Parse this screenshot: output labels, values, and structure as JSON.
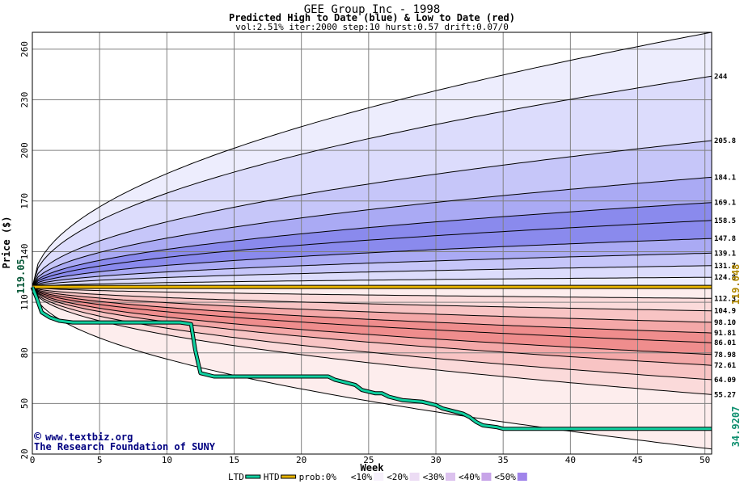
{
  "chart_data": {
    "type": "area",
    "title": "GEE Group Inc - 1998",
    "subtitle": "Predicted High to Date (blue) &  Low to Date (red)",
    "params": "vol:2.51% iter:2000 step:10 hurst:0.57 drift:0.07/0",
    "xlabel": "Week",
    "ylabel": "Price ($)",
    "xlim": [
      0,
      50.5
    ],
    "ylim": [
      20,
      270
    ],
    "x_ticks": [
      0,
      5,
      10,
      15,
      20,
      25,
      30,
      35,
      40,
      45,
      50
    ],
    "y_ticks": [
      20,
      50,
      80,
      110,
      140,
      170,
      200,
      230,
      260
    ],
    "grid": true,
    "start_price": 119.05,
    "start_label": "119.05",
    "current_price": 119.048,
    "current_label": "119.048",
    "ltd_label": "34.9207",
    "colors": {
      "upper_bands": [
        "#ededfd",
        "#dcdcfc",
        "#c6c6f9",
        "#aaaaf4",
        "#8a8aed"
      ],
      "lower_bands": [
        "#fdeded",
        "#fbdada",
        "#f8c4c4",
        "#f4a8a8",
        "#ef8d8d"
      ],
      "ltd": "#10d0a0",
      "htd": "#e8b400",
      "credit": "#000080"
    },
    "high_percentiles": [
      {
        "label": "244",
        "end": 244
      },
      {
        "label": "205.8",
        "end": 205.8
      },
      {
        "label": "184.1",
        "end": 184.1
      },
      {
        "label": "169.1",
        "end": 169.1
      },
      {
        "label": "158.5",
        "end": 158.5
      },
      {
        "label": "147.8",
        "end": 147.8
      },
      {
        "label": "139.1",
        "end": 139.1
      },
      {
        "label": "131.7",
        "end": 131.7
      },
      {
        "label": "124.8",
        "end": 124.8
      }
    ],
    "low_percentiles": [
      {
        "label": "112.3",
        "end": 112.3
      },
      {
        "label": "104.9",
        "end": 104.9
      },
      {
        "label": "98.10",
        "end": 98.1
      },
      {
        "label": "91.81",
        "end": 91.81
      },
      {
        "label": "86.01",
        "end": 86.01
      },
      {
        "label": "78.98",
        "end": 78.98
      },
      {
        "label": "72.61",
        "end": 72.61
      },
      {
        "label": "64.09",
        "end": 64.09
      },
      {
        "label": "55.27",
        "end": 55.27
      }
    ],
    "max_envelope_end": 270,
    "min_envelope_end": 23,
    "ltd_series": {
      "x": [
        0,
        0.3,
        0.7,
        1.3,
        2,
        3,
        5,
        9,
        11,
        11.8,
        12.1,
        12.5,
        13.5,
        14,
        17,
        20,
        22,
        22.5,
        23.5,
        24,
        24.5,
        25.5,
        26,
        26.5,
        27.5,
        29,
        30,
        30.5,
        31,
        32,
        32.5,
        33,
        33.5,
        34.5,
        35,
        50.5
      ],
      "y": [
        119,
        113,
        104,
        101,
        99,
        98,
        98,
        98,
        98,
        97,
        82,
        68,
        66,
        66,
        66,
        66,
        66,
        64,
        62,
        61,
        58,
        56,
        56,
        54,
        52,
        51,
        49,
        47,
        46,
        44,
        42,
        39,
        37,
        36,
        35,
        34.92
      ]
    },
    "htd_series": {
      "x": [
        0,
        50.5
      ],
      "y": [
        119.05,
        119.05
      ]
    }
  },
  "credits": {
    "copyright_symbol": "©",
    "site": "www.textbiz.org",
    "org": "The Research Foundation of SUNY"
  },
  "legend": {
    "items": [
      {
        "label": "LTD",
        "kind": "line",
        "color": "#10d0a0"
      },
      {
        "label": "HTD",
        "kind": "line",
        "color": "#e8b400"
      },
      {
        "label": "prob:0%",
        "kind": "swatch",
        "color": "#ffffff"
      },
      {
        "label": "<10%",
        "kind": "swatch",
        "color": "#f6f0fb"
      },
      {
        "label": "<20%",
        "kind": "swatch",
        "color": "#ecdcf4"
      },
      {
        "label": "<30%",
        "kind": "swatch",
        "color": "#dcc2ee"
      },
      {
        "label": "<40%",
        "kind": "swatch",
        "color": "#c7a4e8"
      },
      {
        "label": "<50%",
        "kind": "swatch",
        "color": "#a084ea"
      }
    ]
  }
}
